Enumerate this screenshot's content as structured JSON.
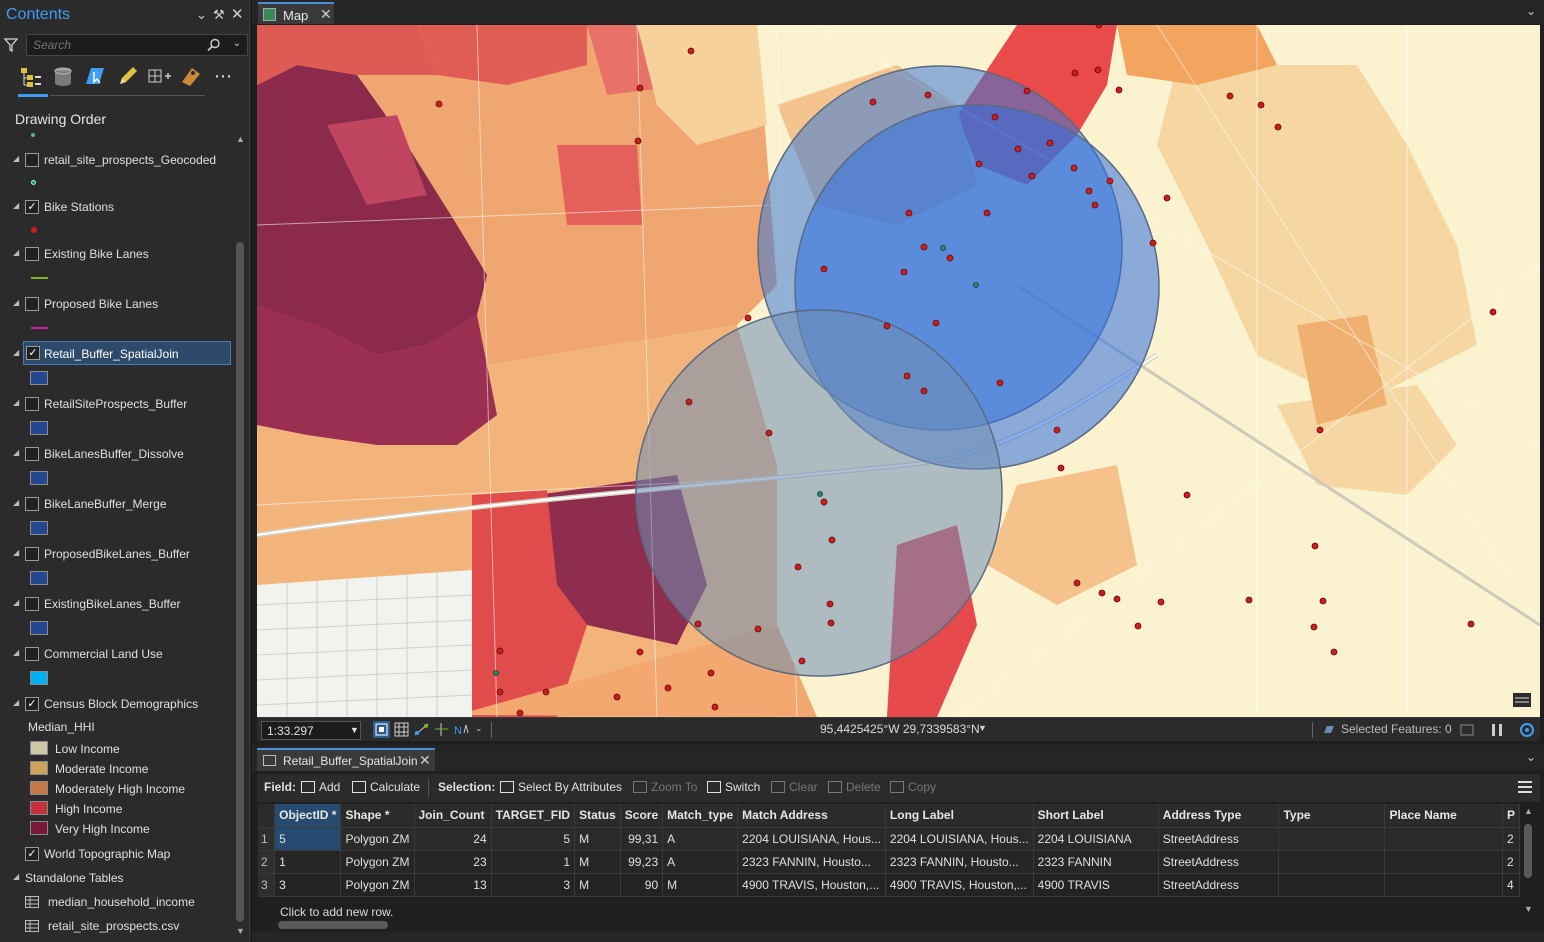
{
  "contents": {
    "title": "Contents",
    "search_placeholder": "Search",
    "drawing_order_label": "Drawing Order",
    "layers": [
      {
        "label": "retail_site_prospects_Geocoded",
        "checked": false
      },
      {
        "label": "Bike Stations",
        "checked": true
      },
      {
        "label": "Existing Bike Lanes",
        "checked": false
      },
      {
        "label": "Proposed Bike Lanes",
        "checked": false
      },
      {
        "label": "Retail_Buffer_SpatialJoin",
        "checked": true,
        "selected": true
      },
      {
        "label": "RetailSiteProspects_Buffer",
        "checked": false
      },
      {
        "label": "BikeLanesBuffer_Dissolve",
        "checked": false
      },
      {
        "label": "BikeLaneBuffer_Merge",
        "checked": false
      },
      {
        "label": "ProposedBikeLanes_Buffer",
        "checked": false
      },
      {
        "label": "ExistingBikeLanes_Buffer",
        "checked": false
      },
      {
        "label": "Commercial Land Use",
        "checked": false
      },
      {
        "label": "Census Block Demographics",
        "checked": true
      }
    ],
    "census_field": "Median_HHI",
    "legend": [
      {
        "label": "Low Income",
        "color": "#cfc8a8"
      },
      {
        "label": "Moderate Income",
        "color": "#c9a35a"
      },
      {
        "label": "Moderately High Income",
        "color": "#c87a46"
      },
      {
        "label": "High Income",
        "color": "#c2323a"
      },
      {
        "label": "Very High Income",
        "color": "#7a1839"
      }
    ],
    "basemap": {
      "label": "World Topographic Map",
      "checked": true
    },
    "standalone_tables_label": "Standalone Tables",
    "standalone_tables": [
      "median_household_income",
      "retail_site_prospects.csv"
    ],
    "symbol_colors": {
      "bike_stations": "#d01c1c",
      "existing_lanes": "#7ab51d",
      "proposed_lanes": "#d11fb0",
      "buffer": "#25478f",
      "commercial": "#00b0f0"
    }
  },
  "map": {
    "tab_label": "Map",
    "scale": "1:33.297",
    "coordinates": "95,4425425°W 29,7339583°N",
    "selected_features": "Selected Features: 0"
  },
  "table": {
    "tab_label": "Retail_Buffer_SpatialJoin",
    "toolbar": {
      "field_label": "Field:",
      "add": "Add",
      "calculate": "Calculate",
      "selection_label": "Selection:",
      "select_by_attributes": "Select By Attributes",
      "zoom_to": "Zoom To",
      "switch": "Switch",
      "clear": "Clear",
      "delete": "Delete",
      "copy": "Copy"
    },
    "columns": [
      "ObjectID *",
      "Shape *",
      "Join_Count",
      "TARGET_FID",
      "Status",
      "Score",
      "Match_type",
      "Match Address",
      "Long Label",
      "Short Label",
      "Address Type",
      "Type",
      "Place Name",
      "P"
    ],
    "rows": [
      {
        "n": "1",
        "cells": [
          "5",
          "Polygon ZM",
          "24",
          "5",
          "M",
          "99,31",
          "A",
          "2204 LOUISIANA, Hous...",
          "2204 LOUISIANA, Hous...",
          "2204 LOUISIANA",
          "StreetAddress",
          "",
          "",
          "2"
        ]
      },
      {
        "n": "2",
        "cells": [
          "1",
          "Polygon ZM",
          "23",
          "1",
          "M",
          "99,23",
          "A",
          "2323 FANNIN, Housto...",
          "2323 FANNIN, Housto...",
          "2323 FANNIN",
          "StreetAddress",
          "",
          "",
          "2"
        ]
      },
      {
        "n": "3",
        "cells": [
          "3",
          "Polygon ZM",
          "13",
          "3",
          "M",
          "90",
          "M",
          "4900 TRAVIS, Houston,...",
          "4900 TRAVIS, Houston,...",
          "4900 TRAVIS",
          "StreetAddress",
          "",
          "",
          "4"
        ]
      }
    ],
    "add_row_text": "Click to add new row."
  }
}
